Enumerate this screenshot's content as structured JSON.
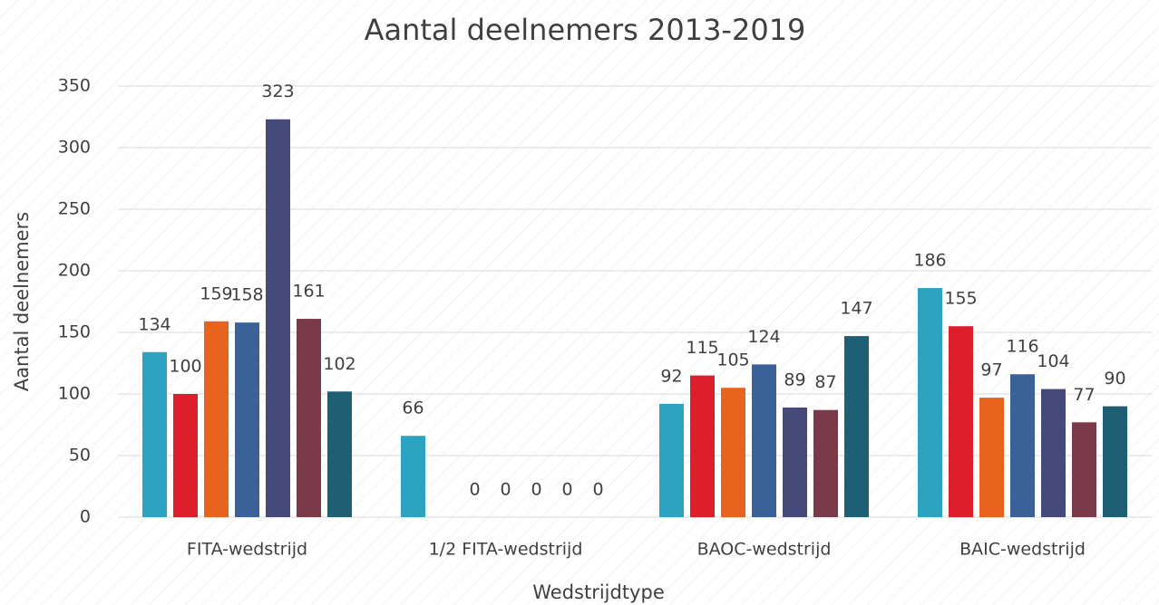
{
  "chart_data": {
    "type": "bar",
    "title": "Aantal deelnemers 2013-2019",
    "x_label": "Wedstrijdtype",
    "y_label": "Aantal deelnemers",
    "categories": [
      "FITA-wedstrijd",
      "1/2 FITA-wedstrijd",
      "BAOC-wedstrijd",
      "BAIC-wedstrijd"
    ],
    "series": [
      {
        "color": "#2ca3c0",
        "values": [
          134,
          66,
          92,
          186
        ]
      },
      {
        "color": "#dc1f2a",
        "values": [
          100,
          null,
          115,
          155
        ]
      },
      {
        "color": "#e8641e",
        "values": [
          159,
          0,
          105,
          97
        ]
      },
      {
        "color": "#3a6198",
        "values": [
          158,
          0,
          124,
          116
        ]
      },
      {
        "color": "#464a78",
        "values": [
          323,
          0,
          89,
          104
        ]
      },
      {
        "color": "#7b3a4a",
        "values": [
          161,
          0,
          87,
          77
        ]
      },
      {
        "color": "#1e5f73",
        "values": [
          102,
          0,
          147,
          90
        ]
      }
    ],
    "ylim": [
      0,
      350
    ],
    "yticks": [
      0,
      50,
      100,
      150,
      200,
      250,
      300,
      350
    ],
    "grid": true
  }
}
